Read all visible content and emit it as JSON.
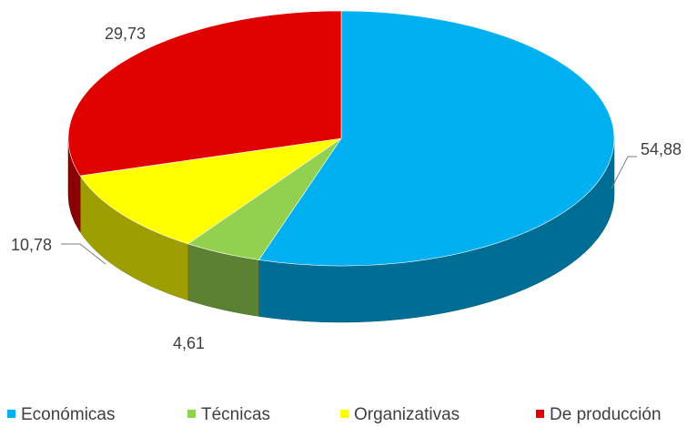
{
  "chart_data": {
    "type": "pie",
    "categories": [
      "Económicas",
      "Técnicas",
      "Organizativas",
      "De producción"
    ],
    "values": [
      54.88,
      4.61,
      10.78,
      29.73
    ],
    "value_labels": [
      "54,88",
      "4,61",
      "10,78",
      "29,73"
    ],
    "colors": [
      "#00b0f0",
      "#92d050",
      "#ffff00",
      "#e00000"
    ],
    "legend": "bottom"
  }
}
